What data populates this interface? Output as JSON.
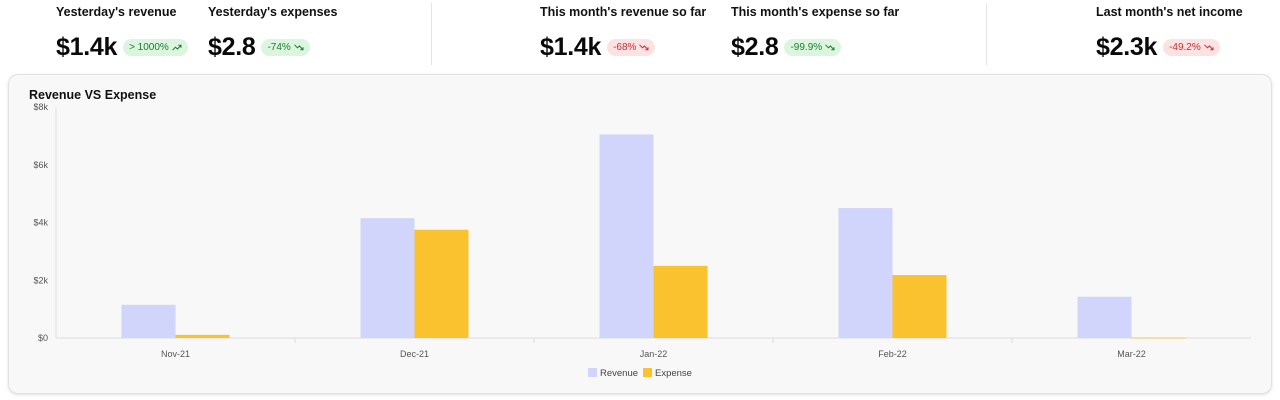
{
  "kpis": [
    {
      "label": "Yesterday's revenue",
      "value": "$1.4k",
      "badge": "> 1000%",
      "trend": "up",
      "icon": "trend-up-icon"
    },
    {
      "label": "Yesterday's expenses",
      "value": "$2.8",
      "badge": "-74%",
      "trend": "up",
      "icon": "trend-down-icon"
    },
    {
      "label": "This month's revenue so far",
      "value": "$1.4k",
      "badge": "-68%",
      "trend": "down",
      "icon": "trend-down-icon"
    },
    {
      "label": "This month's expense so far",
      "value": "$2.8",
      "badge": "-99.9%",
      "trend": "up",
      "icon": "trend-down-icon"
    },
    {
      "label": "Last month's net income",
      "value": "$2.3k",
      "badge": "-49.2%",
      "trend": "down",
      "icon": "trend-down-icon"
    }
  ],
  "colors": {
    "revenue": "#d1d4fb",
    "expense": "#fbc22f",
    "positive_badge_bg": "#dcf5df",
    "positive_badge_text": "#1f7a35",
    "negative_badge_bg": "#fde2e2",
    "negative_badge_text": "#c0303a"
  },
  "chart_data": {
    "type": "bar",
    "title": "Revenue VS Expense",
    "categories": [
      "Nov-21",
      "Dec-21",
      "Jan-22",
      "Feb-22",
      "Mar-22"
    ],
    "series": [
      {
        "name": "Revenue",
        "values": [
          1150,
          4150,
          7050,
          4500,
          1430
        ]
      },
      {
        "name": "Expense",
        "values": [
          110,
          3750,
          2500,
          2180,
          15
        ]
      }
    ],
    "ylim": [
      0,
      8000
    ],
    "y_ticks": [
      0,
      2000,
      4000,
      6000,
      8000
    ],
    "y_tick_labels": [
      "$0",
      "$2k",
      "$4k",
      "$6k",
      "$8k"
    ],
    "legend_position": "bottom-center",
    "grid": false
  }
}
